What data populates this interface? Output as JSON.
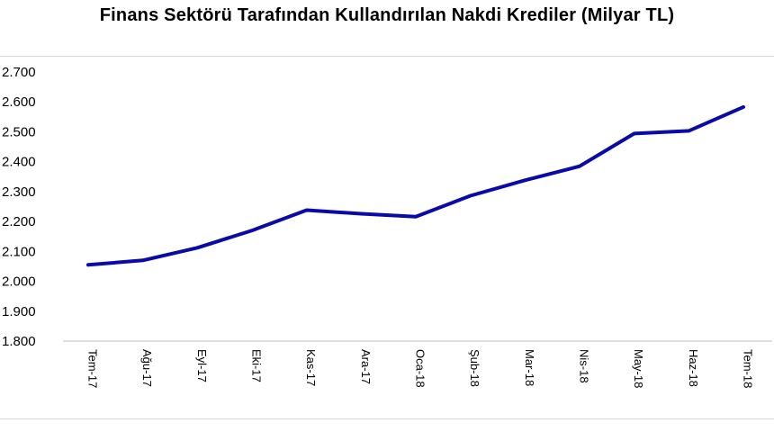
{
  "chart_data": {
    "type": "line",
    "title": "Finans Sektörü Tarafından Kullandırılan Nakdi Krediler (Milyar TL)",
    "xlabel": "",
    "ylabel": "",
    "ylim": [
      1800,
      2700
    ],
    "yticks": [
      "2.700",
      "2.600",
      "2.500",
      "2.400",
      "2.300",
      "2.200",
      "2.100",
      "2.000",
      "1.900",
      "1.800"
    ],
    "grid": false,
    "categories": [
      "Tem-17",
      "Ağu-17",
      "Eyl-17",
      "Eki-17",
      "Kas-17",
      "Ara-17",
      "Oca-18",
      "Şub-18",
      "Mar-18",
      "Nis-18",
      "May-18",
      "Haz-18",
      "Tem-18"
    ],
    "series": [
      {
        "values": [
          2055,
          2070,
          2112,
          2170,
          2238,
          2226,
          2216,
          2286,
          2338,
          2385,
          2494,
          2503,
          2583
        ],
        "color": "#0a0aa8"
      }
    ]
  }
}
